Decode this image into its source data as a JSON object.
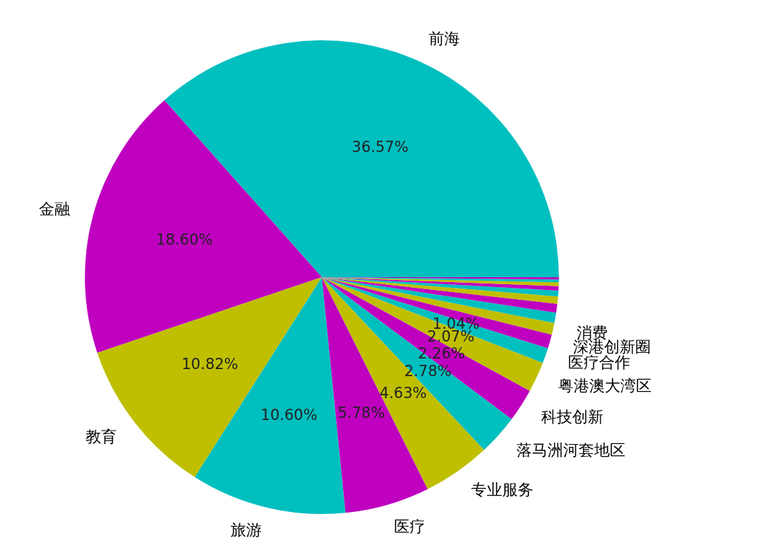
{
  "chart_data": {
    "type": "pie",
    "categories": [
      "前海",
      "金融",
      "教育",
      "旅游",
      "医疗",
      "专业服务",
      "落马洲河套地区",
      "科技创新",
      "粤港澳大湾区",
      "医疗合作",
      "深港创新圈",
      "消费",
      null,
      null,
      null,
      null,
      null,
      null,
      null,
      null
    ],
    "values": [
      36.57,
      18.6,
      10.82,
      10.6,
      5.78,
      4.63,
      2.78,
      2.26,
      2.07,
      1.04,
      0.95,
      0.8,
      0.7,
      0.6,
      0.5,
      0.4,
      0.3,
      0.25,
      0.2,
      0.15
    ],
    "value_labels": [
      "36.57%",
      "18.60%",
      "10.82%",
      "10.60%",
      "5.78%",
      "4.63%",
      "2.78%",
      "2.26%",
      "2.07%",
      "1.04%",
      null,
      null,
      null,
      null,
      null,
      null,
      null,
      null,
      null,
      null
    ],
    "colors": [
      "#00bfbf",
      "#bf00bf",
      "#bfbf00",
      "#00bfbf",
      "#bf00bf",
      "#bfbf00",
      "#00bfbf",
      "#bf00bf",
      "#bfbf00",
      "#00bfbf",
      "#bf00bf",
      "#bfbf00",
      "#00bfbf",
      "#bf00bf",
      "#bfbf00",
      "#00bfbf",
      "#bf00bf",
      "#bfbf00",
      "#00bfbf",
      "#bf00bf"
    ]
  }
}
